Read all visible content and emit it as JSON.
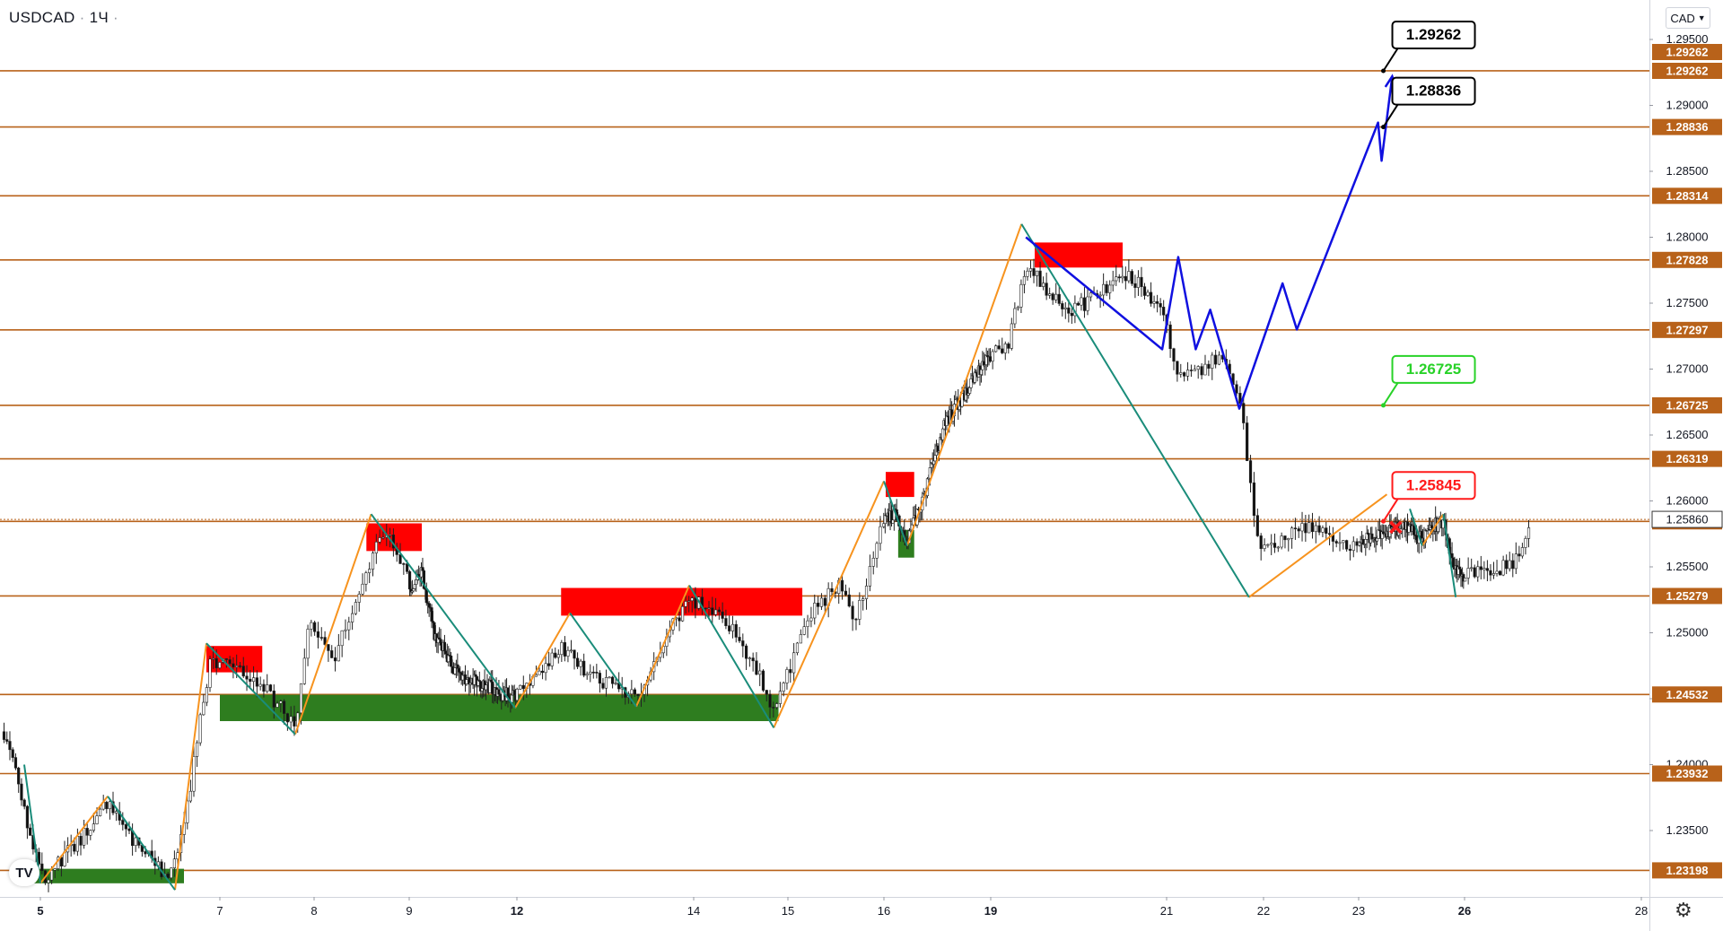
{
  "header": {
    "symbol": "USDCAD",
    "timeframe": "1Ч",
    "currency": "CAD"
  },
  "icons": {
    "settings": "gear-icon",
    "logo": "tradingview-logo",
    "currency_dropdown": "chevron-down-icon"
  },
  "colors": {
    "level": "#b8621a",
    "up_zigzag": "#f7931e",
    "down_zigzag": "#1a8c7a",
    "supply": "#ff0000",
    "demand": "#2e7d1f",
    "forecast": "#1010e0",
    "target_callout": "#000000",
    "green_callout": "#28d228",
    "red_callout": "#ff1a1a"
  },
  "chart_data": {
    "type": "candlestick",
    "symbol": "USDCAD",
    "timeframe": "1Ч",
    "y_range": [
      1.228,
      1.298
    ],
    "y_ticks": [
      "1.29500",
      "1.29000",
      "1.28500",
      "1.28000",
      "1.27500",
      "1.27000",
      "1.26500",
      "1.26000",
      "1.25500",
      "1.25000",
      "1.24500",
      "1.24000",
      "1.23500"
    ],
    "x_ticks": [
      {
        "day": 5,
        "label": "5",
        "bold": true
      },
      {
        "day": 7,
        "label": "7",
        "bold": false
      },
      {
        "day": 8,
        "label": "8",
        "bold": false
      },
      {
        "day": 9,
        "label": "9",
        "bold": false
      },
      {
        "day": 12,
        "label": "12",
        "bold": true
      },
      {
        "day": 14,
        "label": "14",
        "bold": false
      },
      {
        "day": 15,
        "label": "15",
        "bold": false
      },
      {
        "day": 16,
        "label": "16",
        "bold": false
      },
      {
        "day": 19,
        "label": "19",
        "bold": true
      },
      {
        "day": 21,
        "label": "21",
        "bold": false
      },
      {
        "day": 22,
        "label": "22",
        "bold": false
      },
      {
        "day": 23,
        "label": "23",
        "bold": false
      },
      {
        "day": 26,
        "label": "26",
        "bold": true
      },
      {
        "day": 28,
        "label": "28",
        "bold": false
      }
    ],
    "levels": [
      "1.29262",
      "1.28836",
      "1.28314",
      "1.27828",
      "1.27297",
      "1.26725",
      "1.26319",
      "1.25845",
      "1.25279",
      "1.24532",
      "1.23932",
      "1.23198"
    ],
    "extra_axis_labels": [
      "1.29262"
    ],
    "current_price": "1.25860",
    "callouts": [
      {
        "text": "1.29262",
        "style": "black",
        "day": 23.7,
        "price": 1.29262
      },
      {
        "text": "1.28836",
        "style": "black",
        "day": 23.7,
        "price": 1.28836
      },
      {
        "text": "1.26725",
        "style": "green",
        "day": 23.7,
        "price": 1.26725
      },
      {
        "text": "1.25845",
        "style": "red",
        "day": 23.7,
        "price": 1.25845
      }
    ],
    "zones": [
      {
        "kind": "supply",
        "d1": 6.85,
        "d2": 7.45,
        "p_top": 1.249,
        "p_bot": 1.247
      },
      {
        "kind": "supply",
        "d1": 8.55,
        "d2": 9.35,
        "p_top": 1.2583,
        "p_bot": 1.2562
      },
      {
        "kind": "supply",
        "d1": 12.5,
        "d2": 15.15,
        "p_top": 1.2534,
        "p_bot": 1.2513
      },
      {
        "kind": "supply",
        "d1": 16.05,
        "d2": 16.85,
        "p_top": 1.2622,
        "p_bot": 1.2603
      },
      {
        "kind": "supply",
        "d1": 19.5,
        "d2": 20.5,
        "p_top": 1.2796,
        "p_bot": 1.2777
      },
      {
        "kind": "demand",
        "d1": 4.9,
        "d2": 6.6,
        "p_top": 1.2321,
        "p_bot": 1.231
      },
      {
        "kind": "demand",
        "d1": 7.0,
        "d2": 14.9,
        "p_top": 1.2453,
        "p_bot": 1.2433
      },
      {
        "kind": "demand",
        "d1": 16.4,
        "d2": 16.85,
        "p_top": 1.2578,
        "p_bot": 1.2557
      }
    ],
    "zigzag_up": [
      [
        [
          5.0,
          1.231
        ],
        [
          5.75,
          1.2376
        ]
      ],
      [
        [
          6.5,
          1.2305
        ],
        [
          6.85,
          1.2492
        ]
      ],
      [
        [
          7.8,
          1.2423
        ],
        [
          8.6,
          1.259
        ]
      ],
      [
        [
          11.95,
          1.2443
        ],
        [
          12.6,
          1.2515
        ]
      ],
      [
        [
          13.35,
          1.2444
        ],
        [
          13.95,
          1.2536
        ]
      ],
      [
        [
          14.85,
          1.2428
        ],
        [
          16.0,
          1.2615
        ]
      ],
      [
        [
          16.65,
          1.2566
        ],
        [
          19.35,
          1.281
        ]
      ],
      [
        [
          21.85,
          1.2527
        ],
        [
          23.8,
          1.2605
        ]
      ],
      [
        [
          24.8,
          1.2566
        ],
        [
          25.4,
          1.259
        ]
      ]
    ],
    "zigzag_down": [
      [
        [
          4.8,
          1.24
        ],
        [
          5.0,
          1.231
        ]
      ],
      [
        [
          5.75,
          1.2376
        ],
        [
          6.5,
          1.2305
        ]
      ],
      [
        [
          6.85,
          1.2492
        ],
        [
          7.8,
          1.2423
        ]
      ],
      [
        [
          8.6,
          1.259
        ],
        [
          9.45,
          1.2535
        ]
      ],
      [
        [
          9.45,
          1.2535
        ],
        [
          11.95,
          1.2443
        ]
      ],
      [
        [
          12.6,
          1.2515
        ],
        [
          13.35,
          1.2444
        ]
      ],
      [
        [
          13.95,
          1.2536
        ],
        [
          14.85,
          1.2428
        ]
      ],
      [
        [
          16.0,
          1.2615
        ],
        [
          16.65,
          1.2566
        ]
      ],
      [
        [
          19.35,
          1.281
        ],
        [
          21.85,
          1.2527
        ]
      ],
      [
        [
          24.45,
          1.2594
        ],
        [
          24.8,
          1.2566
        ]
      ],
      [
        [
          25.4,
          1.259
        ],
        [
          25.75,
          1.2527
        ]
      ]
    ],
    "forecast_path": [
      [
        19.4,
        1.28
      ],
      [
        20.95,
        1.2715
      ],
      [
        21.12,
        1.2785
      ],
      [
        21.3,
        1.2715
      ],
      [
        21.45,
        1.2745
      ],
      [
        21.75,
        1.267
      ],
      [
        22.2,
        1.2765
      ],
      [
        22.35,
        1.273
      ],
      [
        23.55,
        1.2887
      ],
      [
        23.65,
        1.2858
      ],
      [
        23.95,
        1.2922
      ]
    ],
    "red_cross": {
      "day": 24.05,
      "price": 1.258
    },
    "price_waypoints": [
      [
        4.55,
        1.2425
      ],
      [
        4.7,
        1.2395
      ],
      [
        4.9,
        1.234
      ],
      [
        5.05,
        1.2315
      ],
      [
        5.4,
        1.234
      ],
      [
        5.75,
        1.237
      ],
      [
        6.1,
        1.2335
      ],
      [
        6.45,
        1.2315
      ],
      [
        6.6,
        1.235
      ],
      [
        6.75,
        1.242
      ],
      [
        6.9,
        1.248
      ],
      [
        7.2,
        1.247
      ],
      [
        7.45,
        1.246
      ],
      [
        7.8,
        1.243
      ],
      [
        7.95,
        1.251
      ],
      [
        8.2,
        1.248
      ],
      [
        8.5,
        1.254
      ],
      [
        8.75,
        1.258
      ],
      [
        9.05,
        1.253
      ],
      [
        9.35,
        1.2545
      ],
      [
        9.7,
        1.25
      ],
      [
        10.3,
        1.247
      ],
      [
        11.95,
        1.245
      ],
      [
        12.5,
        1.249
      ],
      [
        12.8,
        1.247
      ],
      [
        13.35,
        1.245
      ],
      [
        13.7,
        1.25
      ],
      [
        13.95,
        1.2525
      ],
      [
        14.35,
        1.251
      ],
      [
        14.75,
        1.246
      ],
      [
        14.85,
        1.244
      ],
      [
        15.2,
        1.251
      ],
      [
        15.55,
        1.254
      ],
      [
        15.7,
        1.251
      ],
      [
        16.0,
        1.2585
      ],
      [
        16.3,
        1.259
      ],
      [
        16.65,
        1.257
      ],
      [
        16.95,
        1.259
      ],
      [
        17.2,
        1.261
      ],
      [
        17.5,
        1.264
      ],
      [
        17.75,
        1.266
      ],
      [
        19.2,
        1.272
      ],
      [
        19.4,
        1.278
      ],
      [
        19.7,
        1.2755
      ],
      [
        19.95,
        1.2745
      ],
      [
        20.3,
        1.276
      ],
      [
        20.6,
        1.277
      ],
      [
        20.95,
        1.2745
      ],
      [
        21.1,
        1.27
      ],
      [
        21.35,
        1.27
      ],
      [
        21.6,
        1.271
      ],
      [
        21.75,
        1.268
      ],
      [
        21.85,
        1.2625
      ],
      [
        21.95,
        1.256
      ],
      [
        22.2,
        1.257
      ],
      [
        22.4,
        1.258
      ],
      [
        22.55,
        1.258
      ],
      [
        22.8,
        1.2565
      ],
      [
        23.2,
        1.257
      ],
      [
        23.6,
        1.2575
      ],
      [
        24.0,
        1.2578
      ],
      [
        24.4,
        1.258
      ],
      [
        24.8,
        1.257
      ],
      [
        25.1,
        1.258
      ],
      [
        25.4,
        1.2585
      ],
      [
        25.6,
        1.256
      ],
      [
        25.8,
        1.2545
      ],
      [
        26.2,
        1.2545
      ],
      [
        26.5,
        1.255
      ],
      [
        26.65,
        1.2562
      ],
      [
        26.75,
        1.2586
      ]
    ]
  }
}
